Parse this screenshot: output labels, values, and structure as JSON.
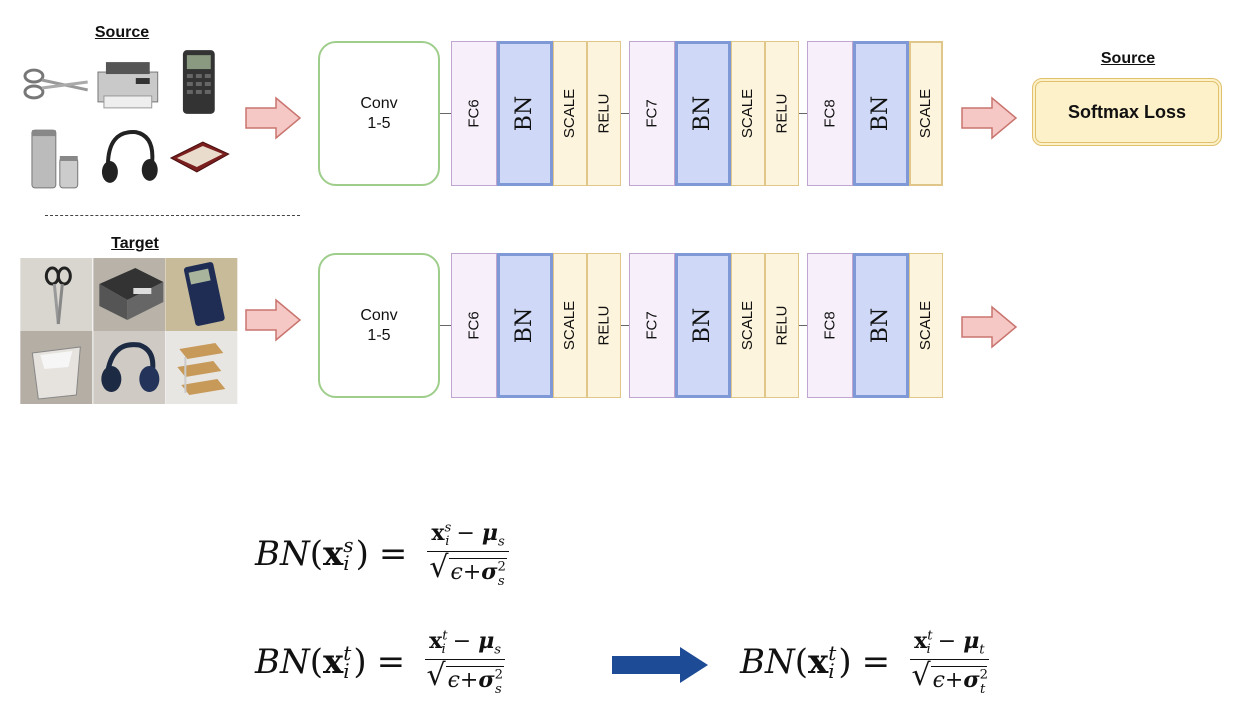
{
  "source_label": "Source",
  "target_label": "Target",
  "output_source_label": "Source",
  "conv_label": "Conv\n1-5",
  "fc6": "FC6",
  "fc7": "FC7",
  "fc8": "FC8",
  "bn": "BN",
  "scale": "SCALE",
  "relu": "RELU",
  "softmax_label": "Softmax Loss",
  "formulas": {
    "bn_symbol": "BN",
    "epsilon": "ϵ",
    "src_sup": "s",
    "tgt_sup": "t",
    "idx": "i",
    "mu_s": "s",
    "mu_t": "t",
    "sigma_s": "s",
    "sigma_t": "t"
  },
  "colors": {
    "arrow_pink": "#f5c8c5",
    "arrow_pink_border": "#c9746e",
    "arrow_blue": "#1e4b96"
  }
}
